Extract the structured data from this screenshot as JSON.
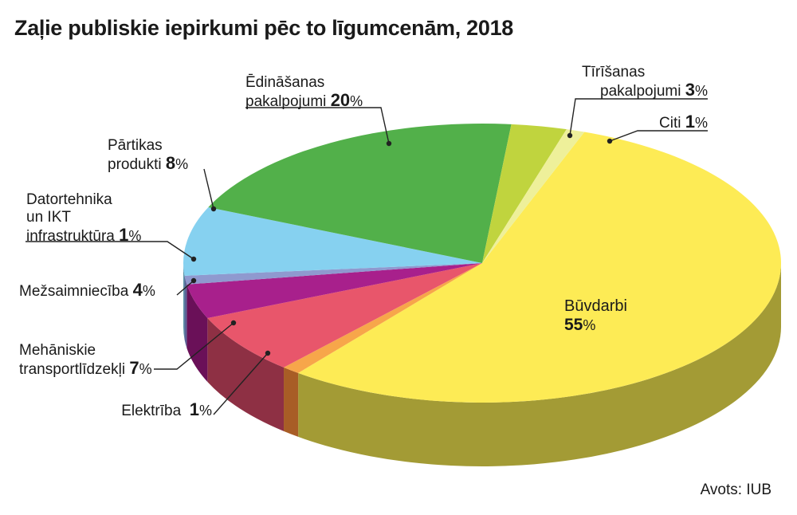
{
  "title": "Zaļie publiskie iepirkumi pēc to līgumcenām, 2018",
  "source": "Avots: IUB",
  "chart_data": {
    "type": "pie",
    "title": "Zaļie publiskie iepirkumi pēc to līgumcenām, 2018",
    "unit": "%",
    "slices": [
      {
        "name": "Būvdarbi",
        "name_lines": [
          "Būvdarbi"
        ],
        "value": 55,
        "color": "#fdeb55",
        "side": "#a39b35"
      },
      {
        "name": "Elektrība",
        "name_lines": [
          "Elektrība"
        ],
        "value": 1,
        "color": "#f7a64a",
        "side": "#a85d26"
      },
      {
        "name": "Mehāniskie transportlīdzekļi",
        "name_lines": [
          "Mehāniskie",
          "transportlīdzekļi"
        ],
        "value": 7,
        "color": "#e8566b",
        "side": "#8e3044"
      },
      {
        "name": "Mežsaimniecība",
        "name_lines": [
          "Mežsaimniecība"
        ],
        "value": 4,
        "color": "#a8208c",
        "side": "#6a1058"
      },
      {
        "name": "Datortehnika un IKT infrastruktūra",
        "name_lines": [
          "Datortehnika",
          "un IKT",
          "infrastruktūra"
        ],
        "value": 1,
        "color": "#8f99cf",
        "side": "#5b6397"
      },
      {
        "name": "Pārtikas produkti",
        "name_lines": [
          "Pārtikas",
          "produkti"
        ],
        "value": 8,
        "color": "#86d1f0",
        "side": "#5c93a8"
      },
      {
        "name": "Ēdināšanas pakalpojumi",
        "name_lines": [
          "Ēdināšanas",
          "pakalpojumi"
        ],
        "value": 20,
        "color": "#52b04a",
        "side": "#356f30"
      },
      {
        "name": "Tīrīšanas pakalpojumi",
        "name_lines": [
          "Tīrīšanas",
          "pakalpojumi"
        ],
        "value": 3,
        "color": "#c0d43e",
        "side": "#80902a"
      },
      {
        "name": "Citi",
        "name_lines": [
          "Citi"
        ],
        "value": 1,
        "color": "#eef09a",
        "side": "#a4a66a"
      }
    ]
  }
}
